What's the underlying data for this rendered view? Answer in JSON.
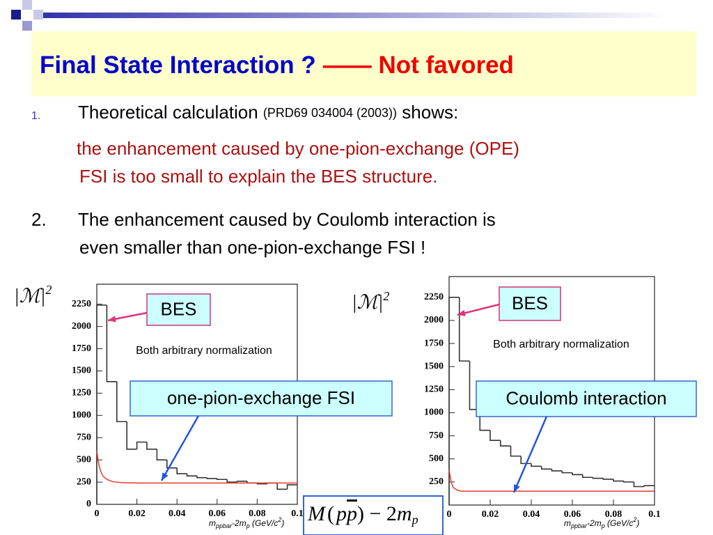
{
  "slide": {
    "title": "Final State Interaction ?",
    "title_tail": "—— Not favored",
    "item1": {
      "number": "1.",
      "text": "Theoretical calculation ",
      "ref": "(PRD69 034004 (2003))",
      "text_end": " shows:",
      "detail": [
        "the enhancement caused by one-pion-exchange (OPE)",
        "FSI is too small to explain the BES structure."
      ]
    },
    "item2": {
      "number": "2.",
      "lines": [
        "The enhancement caused by Coulomb interaction is",
        "even smaller than one-pion-exchange FSI !"
      ]
    },
    "formula": {
      "text": "M",
      "bracket": "(",
      "p": "p",
      "pbar": "p",
      "close": ")",
      "minus": " − 2",
      "m": "m",
      "sub": "p"
    }
  },
  "chart_data": [
    {
      "type": "histogram",
      "ylabel": [
        "|ℳ|",
        "2"
      ],
      "xlabel": [
        "m",
        "ppbar",
        "-2m",
        "p",
        " (GeV/c",
        "2",
        ")"
      ],
      "bins": [
        0,
        0.005,
        0.01,
        0.015,
        0.02,
        0.025,
        0.03,
        0.035,
        0.04,
        0.045,
        0.05,
        0.055,
        0.06,
        0.065,
        0.07,
        0.075,
        0.08,
        0.085,
        0.09,
        0.095,
        0.1
      ],
      "counts": [
        2240,
        1380,
        930,
        620,
        700,
        620,
        500,
        410,
        345,
        320,
        300,
        290,
        280,
        250,
        260,
        240,
        230,
        240,
        170,
        220
      ],
      "color": "#333333",
      "curve": {
        "color": "#e8392e",
        "x": [
          0,
          0.001,
          0.002,
          0.003,
          0.005,
          0.008,
          0.012,
          0.02,
          0.1
        ],
        "values": [
          600,
          450,
          370,
          320,
          280,
          255,
          245,
          240,
          240
        ]
      },
      "xlim": [
        0,
        0.1
      ],
      "ylim": [
        0,
        2475
      ],
      "xticks": [
        0,
        0.02,
        0.04,
        0.06,
        0.08,
        0.1
      ],
      "yticks": [
        0,
        250,
        500,
        750,
        1000,
        1250,
        1500,
        1750,
        2000,
        2250
      ],
      "annotations": [
        "BES",
        "Both arbitrary normalization",
        "one-pion-exchange FSI"
      ]
    },
    {
      "type": "histogram",
      "ylabel": [
        "|ℳ|",
        "2"
      ],
      "xlabel": [
        "m",
        "ppbar",
        "-2m",
        "p",
        " (GeV/c",
        "2",
        ")"
      ],
      "bins": [
        0,
        0.005,
        0.01,
        0.015,
        0.02,
        0.025,
        0.03,
        0.035,
        0.04,
        0.045,
        0.05,
        0.055,
        0.06,
        0.065,
        0.07,
        0.075,
        0.08,
        0.085,
        0.09,
        0.095,
        0.1
      ],
      "counts": [
        2250,
        1560,
        1035,
        810,
        700,
        640,
        530,
        450,
        420,
        390,
        370,
        350,
        330,
        300,
        290,
        280,
        260,
        250,
        200,
        210
      ],
      "color": "#333333",
      "curve": {
        "color": "#e8392e",
        "x": [
          0,
          0.001,
          0.002,
          0.004,
          0.006,
          0.1
        ],
        "values": [
          380,
          250,
          190,
          160,
          150,
          150
        ]
      },
      "xlim": [
        0,
        0.1
      ],
      "ylim": [
        0,
        2475
      ],
      "xticks": [
        0,
        0.02,
        0.04,
        0.06,
        0.08,
        0.1
      ],
      "yticks": [
        250,
        500,
        750,
        1000,
        1250,
        1500,
        1750,
        2000,
        2250
      ],
      "annotations": [
        "BES",
        "Both arbitrary normalization",
        "Coulomb interaction"
      ]
    }
  ]
}
